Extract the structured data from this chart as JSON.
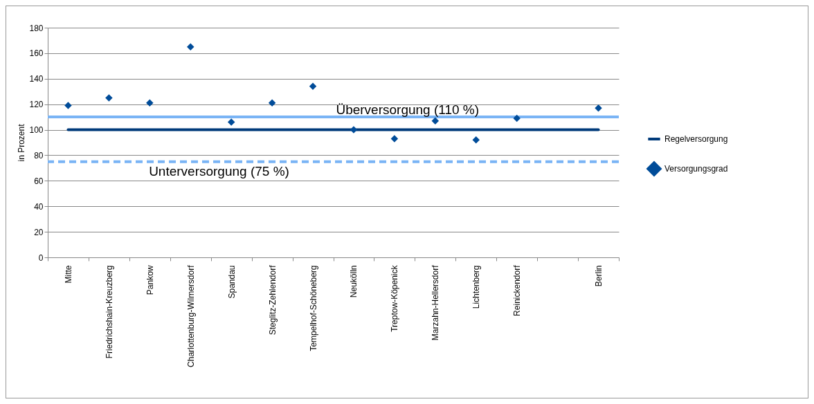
{
  "chart_data": {
    "type": "scatter",
    "ylabel": "in Prozent",
    "categories": [
      "Mitte",
      "Friedrichshain-Kreuzberg",
      "Pankow",
      "Charlottenburg-Wilmersdorf",
      "Spandau",
      "Steglitz-Zehlendorf",
      "Tempelhof-Schöneberg",
      "Neukölln",
      "Treptow-Köpenick",
      "Marzahn-Hellersdorf",
      "Lichtenberg",
      "Reinickendorf",
      null,
      "Berlin"
    ],
    "series": [
      {
        "name": "Regelversorgung",
        "type": "line",
        "color": "#003a7a",
        "marker": "none",
        "values": [
          100,
          100,
          100,
          100,
          100,
          100,
          100,
          100,
          100,
          100,
          100,
          100,
          100,
          100
        ]
      },
      {
        "name": "Versorgungsgrad",
        "color": "#004c99",
        "marker": "diamond",
        "values": [
          119,
          125,
          121,
          165,
          106,
          121,
          134,
          100,
          93,
          107,
          92,
          109,
          null,
          117
        ]
      }
    ],
    "ref_lines": [
      {
        "axis": "y",
        "value": 110,
        "label": "Überversorgung (110 %)",
        "color": "#7ab4f5",
        "line_style": "solid"
      },
      {
        "axis": "y",
        "value": 75,
        "label": "Unterversorgung (75 %)",
        "color": "#7ab4f5",
        "line_style": "dashed"
      }
    ],
    "ylim": [
      0,
      180
    ],
    "yticks": [
      0,
      20,
      40,
      60,
      80,
      100,
      120,
      140,
      160,
      180
    ],
    "grid": "y",
    "legend": "right"
  }
}
